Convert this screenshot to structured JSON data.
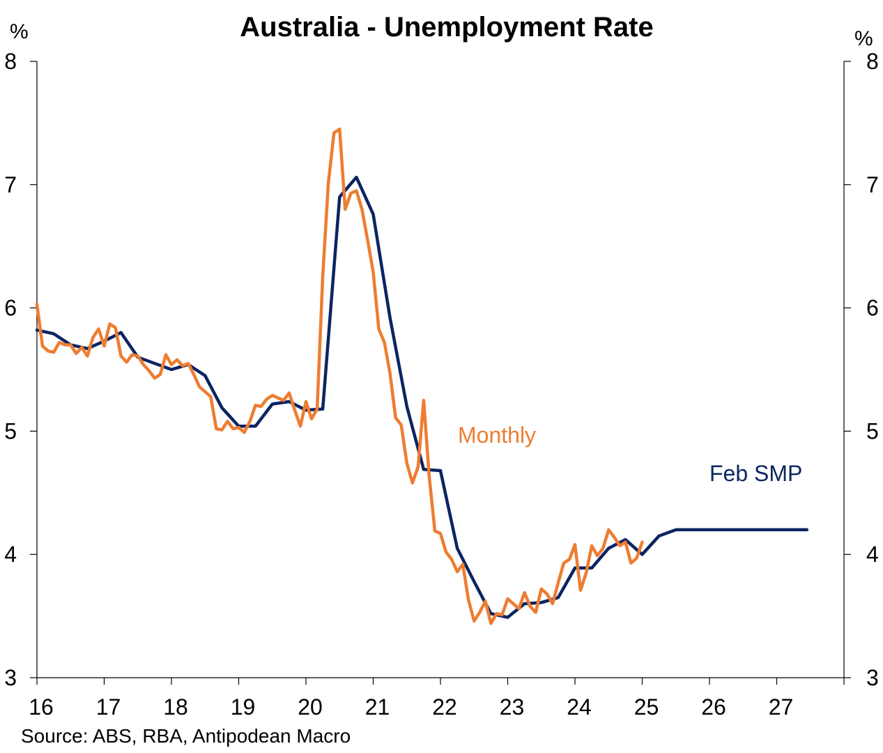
{
  "chart_data": {
    "type": "line",
    "title": "Australia - Unemployment Rate",
    "left_unit": "%",
    "right_unit": "%",
    "source": "Source: ABS, RBA, Antipodean Macro",
    "xlim": [
      2016,
      2028
    ],
    "ylim": [
      3,
      8
    ],
    "x_ticks": [
      2016,
      2017,
      2018,
      2019,
      2020,
      2021,
      2022,
      2023,
      2024,
      2025,
      2026,
      2027
    ],
    "x_tick_labels": [
      "16",
      "17",
      "18",
      "19",
      "20",
      "21",
      "22",
      "23",
      "24",
      "25",
      "26",
      "27"
    ],
    "y_ticks": [
      3,
      4,
      5,
      6,
      7,
      8
    ],
    "y_tick_labels": [
      "3",
      "4",
      "5",
      "6",
      "7",
      "8"
    ],
    "grid": false,
    "series": [
      {
        "name": "Feb SMP",
        "color": "#0c2461",
        "x": [
          2016.0,
          2016.25,
          2016.5,
          2016.75,
          2017.0,
          2017.25,
          2017.5,
          2017.75,
          2018.0,
          2018.25,
          2018.5,
          2018.75,
          2019.0,
          2019.25,
          2019.5,
          2019.75,
          2020.0,
          2020.25,
          2020.5,
          2020.75,
          2021.0,
          2021.25,
          2021.5,
          2021.75,
          2022.0,
          2022.25,
          2022.5,
          2022.75,
          2023.0,
          2023.25,
          2023.5,
          2023.75,
          2024.0,
          2024.25,
          2024.5,
          2024.75,
          2025.0,
          2025.25,
          2025.5,
          2025.75,
          2026.0,
          2026.25,
          2026.5,
          2026.75,
          2027.0,
          2027.25,
          2027.45
        ],
        "values": [
          5.82,
          5.79,
          5.7,
          5.67,
          5.73,
          5.8,
          5.6,
          5.55,
          5.5,
          5.54,
          5.45,
          5.19,
          5.04,
          5.04,
          5.22,
          5.24,
          5.17,
          5.18,
          6.9,
          7.06,
          6.76,
          5.92,
          5.2,
          4.69,
          4.68,
          4.05,
          3.78,
          3.52,
          3.49,
          3.6,
          3.61,
          3.65,
          3.89,
          3.89,
          4.05,
          4.12,
          4.0,
          4.15,
          4.2,
          4.2,
          4.2,
          4.2,
          4.2,
          4.2,
          4.2,
          4.2,
          4.2
        ]
      },
      {
        "name": "Monthly",
        "color": "#ed7d31",
        "x": [
          2016.0,
          2016.083,
          2016.167,
          2016.25,
          2016.333,
          2016.417,
          2016.5,
          2016.583,
          2016.667,
          2016.75,
          2016.833,
          2016.917,
          2017.0,
          2017.083,
          2017.167,
          2017.25,
          2017.333,
          2017.417,
          2017.5,
          2017.583,
          2017.667,
          2017.75,
          2017.833,
          2017.917,
          2018.0,
          2018.083,
          2018.167,
          2018.25,
          2018.333,
          2018.417,
          2018.5,
          2018.583,
          2018.667,
          2018.75,
          2018.833,
          2018.917,
          2019.0,
          2019.083,
          2019.167,
          2019.25,
          2019.333,
          2019.417,
          2019.5,
          2019.583,
          2019.667,
          2019.75,
          2019.833,
          2019.917,
          2020.0,
          2020.083,
          2020.167,
          2020.25,
          2020.333,
          2020.417,
          2020.5,
          2020.583,
          2020.667,
          2020.75,
          2020.833,
          2020.917,
          2021.0,
          2021.083,
          2021.167,
          2021.25,
          2021.333,
          2021.417,
          2021.5,
          2021.583,
          2021.667,
          2021.75,
          2021.833,
          2021.917,
          2022.0,
          2022.083,
          2022.167,
          2022.25,
          2022.333,
          2022.417,
          2022.5,
          2022.583,
          2022.667,
          2022.75,
          2022.833,
          2022.917,
          2023.0,
          2023.083,
          2023.167,
          2023.25,
          2023.333,
          2023.417,
          2023.5,
          2023.583,
          2023.667,
          2023.75,
          2023.833,
          2023.917,
          2024.0,
          2024.083,
          2024.167,
          2024.25,
          2024.333,
          2024.417,
          2024.5,
          2024.583,
          2024.667,
          2024.75,
          2024.833,
          2024.917,
          2025.0
        ],
        "values": [
          6.03,
          5.69,
          5.65,
          5.64,
          5.72,
          5.7,
          5.7,
          5.63,
          5.68,
          5.61,
          5.76,
          5.83,
          5.69,
          5.87,
          5.84,
          5.61,
          5.56,
          5.62,
          5.61,
          5.54,
          5.49,
          5.43,
          5.46,
          5.62,
          5.54,
          5.58,
          5.53,
          5.55,
          5.46,
          5.36,
          5.32,
          5.28,
          5.02,
          5.01,
          5.08,
          5.02,
          5.03,
          4.99,
          5.08,
          5.21,
          5.2,
          5.26,
          5.29,
          5.27,
          5.25,
          5.31,
          5.17,
          5.04,
          5.24,
          5.1,
          5.18,
          6.26,
          7.01,
          7.42,
          7.45,
          6.8,
          6.93,
          6.95,
          6.8,
          6.55,
          6.29,
          5.83,
          5.72,
          5.47,
          5.11,
          5.05,
          4.74,
          4.58,
          4.71,
          5.25,
          4.63,
          4.19,
          4.17,
          4.02,
          3.96,
          3.86,
          3.92,
          3.63,
          3.46,
          3.53,
          3.62,
          3.44,
          3.52,
          3.51,
          3.64,
          3.6,
          3.56,
          3.69,
          3.58,
          3.53,
          3.72,
          3.68,
          3.6,
          3.77,
          3.93,
          3.96,
          4.08,
          3.71,
          3.85,
          4.07,
          3.99,
          4.05,
          4.2,
          4.14,
          4.07,
          4.1,
          3.93,
          3.97,
          4.1
        ]
      }
    ],
    "annotations": [
      {
        "text": "Monthly",
        "color": "#ed7d31"
      },
      {
        "text": "Feb SMP",
        "color": "#0c2461"
      }
    ]
  }
}
